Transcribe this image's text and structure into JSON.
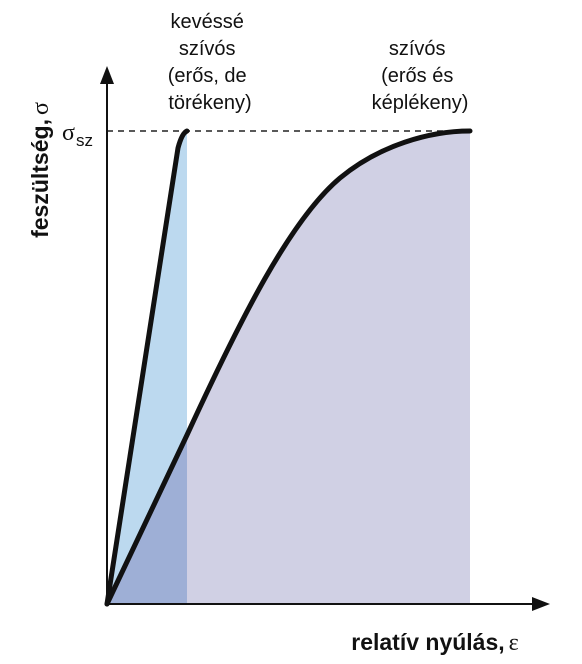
{
  "y_axis": {
    "label": "feszültség,",
    "symbol": "σ"
  },
  "x_axis": {
    "label": "relatív nyúlás,",
    "symbol": "ε"
  },
  "yield_label": {
    "symbol": "σ",
    "subscript": "sz"
  },
  "brittle_note": {
    "lines": [
      "kevéssé",
      "szívós",
      "(erős, de",
      "törékeny)"
    ]
  },
  "ductile_note": {
    "lines": [
      "szívós",
      "(erős és",
      "képlékeny)"
    ]
  }
}
